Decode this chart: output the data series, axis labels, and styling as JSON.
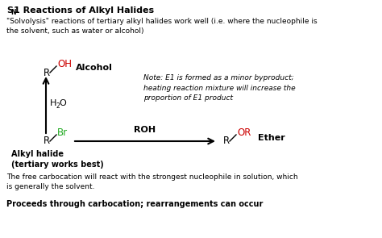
{
  "background_color": "#ffffff",
  "subtitle": "\"Solvolysis\" reactions of tertiary alkyl halides work well (i.e. where the nucleophile is\nthe solvent, such as water or alcohol)",
  "note_italic": "Note: E1 is formed as a minor byproduct;\nheating reaction mixture will increase the\nproportion of E1 product",
  "footer1": "The free carbocation will react with the strongest nucleophile in solution, which\nis generally the solvent.",
  "footer2": "Proceeds through carbocation; rearrangements can occur",
  "alcohol_label": "Alcohol",
  "alkyl_halide_label": "Alkyl halide\n(tertiary works best)",
  "ether_label": "Ether",
  "arrow_label_right": "ROH",
  "green_color": "#22aa22",
  "red_color": "#cc0000"
}
